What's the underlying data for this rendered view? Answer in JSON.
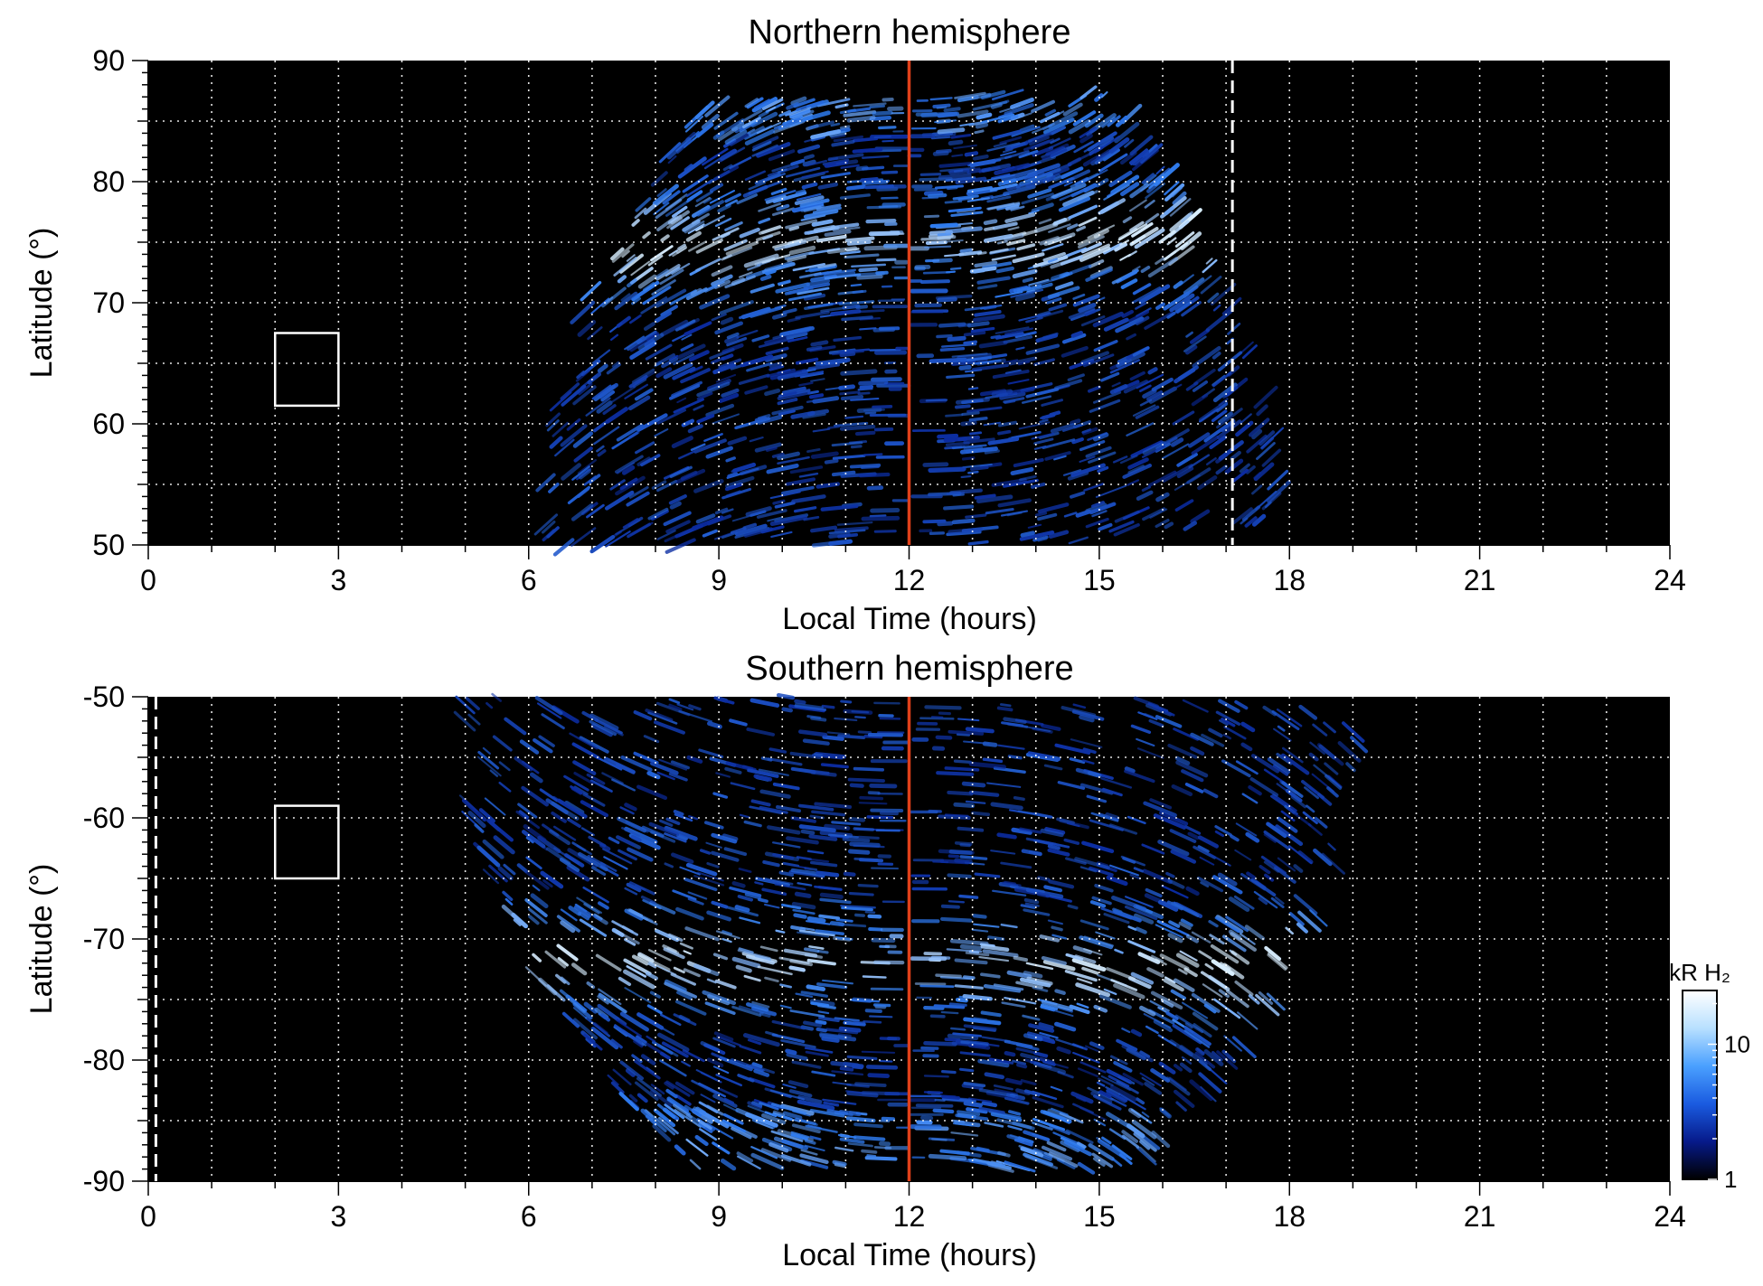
{
  "chart_data": [
    {
      "type": "heatmap",
      "title": "Northern hemisphere",
      "xlabel": "Local Time (hours)",
      "ylabel": "Latitude (°)",
      "xlim": [
        0,
        24
      ],
      "ylim": [
        50,
        90
      ],
      "x_ticks": [
        "0",
        "3",
        "6",
        "9",
        "12",
        "15",
        "18",
        "21",
        "24"
      ],
      "y_ticks": [
        "50",
        "60",
        "70",
        "80",
        "90"
      ],
      "grid": true,
      "emission_extent_hours": [
        6.4,
        17.8
      ],
      "oval_ring_latitude_deg": 75,
      "noon_line_hours": 12,
      "dashed_line_hours": 17.1,
      "box": {
        "x": [
          2,
          3
        ],
        "y": [
          61.5,
          67.5
        ]
      }
    },
    {
      "type": "heatmap",
      "title": "Southern hemisphere",
      "xlabel": "Local Time (hours)",
      "ylabel": "Latitude (°)",
      "xlim": [
        0,
        24
      ],
      "ylim": [
        -90,
        -50
      ],
      "x_ticks": [
        "0",
        "3",
        "6",
        "9",
        "12",
        "15",
        "18",
        "21",
        "24"
      ],
      "y_ticks": [
        "-50",
        "-60",
        "-70",
        "-80",
        "-90"
      ],
      "grid": true,
      "emission_extent_hours": [
        5.0,
        19.0
      ],
      "oval_ring_latitude_deg": -72,
      "noon_line_hours": 12,
      "dashed_line_hours": 0.12,
      "box": {
        "x": [
          2,
          3
        ],
        "y": [
          -65,
          -59
        ]
      }
    }
  ],
  "colorbar": {
    "label": "kR H₂",
    "tick_labels": [
      "1",
      "10"
    ],
    "scale": "log",
    "colors": [
      "#000000",
      "#061a8a",
      "#1a5be0",
      "#4aa0ff",
      "#b8e0ff",
      "#ffffff"
    ]
  },
  "colors": {
    "background": "#000000",
    "noon_line": "#e0401a",
    "grid": "#ffffff",
    "emission_low": "#0b2a9e",
    "emission_mid": "#2f7cf0",
    "emission_high": "#d8eeff"
  }
}
